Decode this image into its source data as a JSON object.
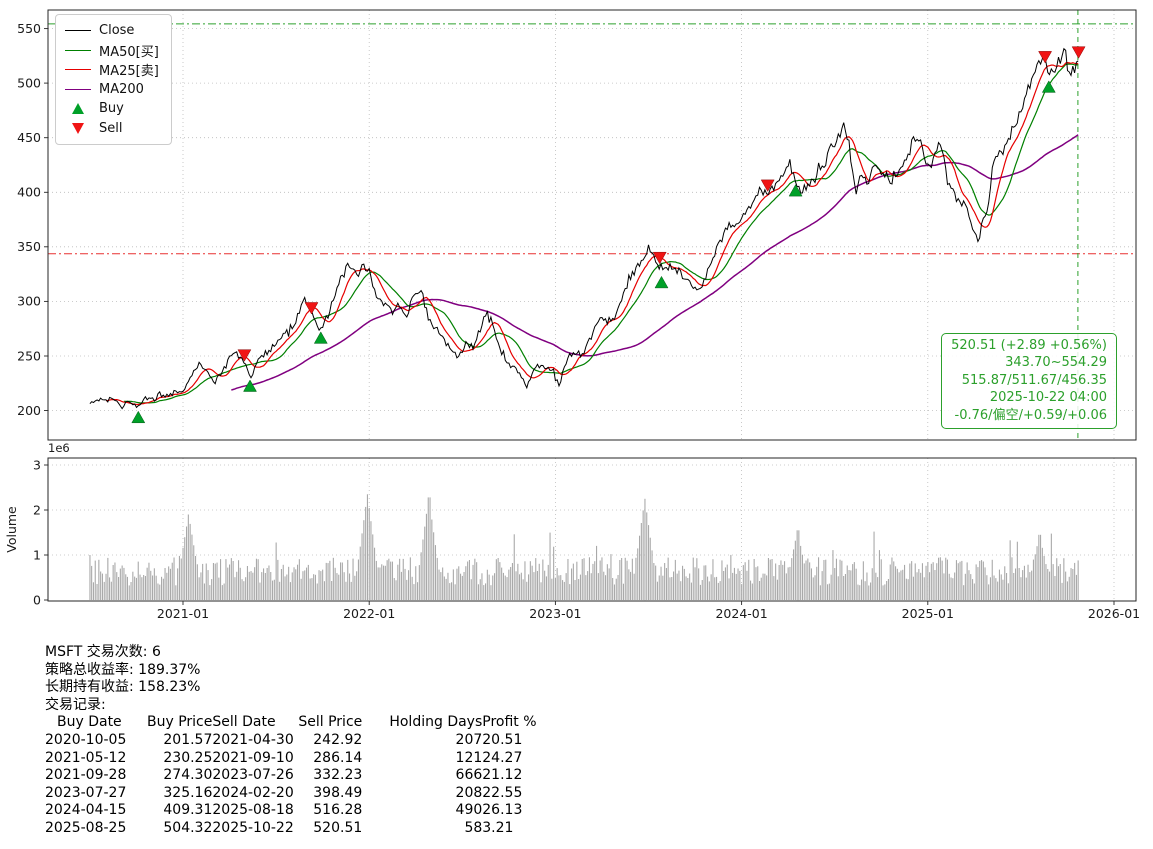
{
  "chart_data": {
    "type": "line",
    "symbol": "MSFT",
    "grid": true,
    "legend_position": "upper-left",
    "x_ticks": [
      {
        "t": 2021.0,
        "label": "2021-01"
      },
      {
        "t": 2022.0,
        "label": "2022-01"
      },
      {
        "t": 2023.0,
        "label": "2023-01"
      },
      {
        "t": 2024.0,
        "label": "2024-01"
      },
      {
        "t": 2025.0,
        "label": "2025-01"
      },
      {
        "t": 2026.0,
        "label": "2026-01"
      }
    ],
    "y_ticks": [
      200,
      250,
      300,
      350,
      400,
      450,
      500,
      550
    ],
    "ylim": [
      173,
      567
    ],
    "xlim": [
      2020.275,
      2026.118
    ],
    "colors": {
      "close": "#000000",
      "ma50": "#008000",
      "ma25": "#e60000",
      "ma200": "#800080",
      "buy": "#00a028",
      "sell": "#f01414",
      "ref_high": "#2ca02c",
      "ref_low": "#e83030",
      "vline": "#2ca02c",
      "volume_bar": "#a9a9a9",
      "annotation": "#2ca02c"
    },
    "legend": [
      {
        "label": "Close",
        "type": "line",
        "color": "#000000"
      },
      {
        "label": "MA50[买]",
        "type": "line",
        "color": "#008000"
      },
      {
        "label": "MA25[卖]",
        "type": "line",
        "color": "#e60000"
      },
      {
        "label": "MA200",
        "type": "line",
        "color": "#800080"
      },
      {
        "label": "Buy",
        "type": "triangle-up",
        "color": "#00a028"
      },
      {
        "label": "Sell",
        "type": "triangle-down",
        "color": "#f01414"
      }
    ],
    "ma_windows": {
      "ma25": 10,
      "ma50": 20,
      "ma200": 80
    },
    "series_close_control_points": [
      [
        2020.5,
        205
      ],
      [
        2020.54,
        212
      ],
      [
        2020.58,
        207
      ],
      [
        2020.62,
        214
      ],
      [
        2020.66,
        203
      ],
      [
        2020.7,
        207
      ],
      [
        2020.76,
        202
      ],
      [
        2020.8,
        212
      ],
      [
        2020.84,
        210
      ],
      [
        2020.88,
        215
      ],
      [
        2020.92,
        213
      ],
      [
        2020.96,
        218
      ],
      [
        2021.0,
        217
      ],
      [
        2021.04,
        232
      ],
      [
        2021.09,
        243
      ],
      [
        2021.13,
        234
      ],
      [
        2021.17,
        226
      ],
      [
        2021.21,
        236
      ],
      [
        2021.25,
        247
      ],
      [
        2021.29,
        252
      ],
      [
        2021.33,
        243
      ],
      [
        2021.36,
        231
      ],
      [
        2021.4,
        245
      ],
      [
        2021.44,
        252
      ],
      [
        2021.48,
        258
      ],
      [
        2021.52,
        266
      ],
      [
        2021.56,
        272
      ],
      [
        2021.6,
        280
      ],
      [
        2021.64,
        296
      ],
      [
        2021.67,
        301
      ],
      [
        2021.69,
        289
      ],
      [
        2021.72,
        278
      ],
      [
        2021.74,
        275
      ],
      [
        2021.78,
        288
      ],
      [
        2021.82,
        309
      ],
      [
        2021.86,
        325
      ],
      [
        2021.9,
        335
      ],
      [
        2021.93,
        323
      ],
      [
        2021.96,
        330
      ],
      [
        2022.0,
        330
      ],
      [
        2022.03,
        310
      ],
      [
        2022.06,
        300
      ],
      [
        2022.09,
        295
      ],
      [
        2022.12,
        290
      ],
      [
        2022.16,
        298
      ],
      [
        2022.2,
        287
      ],
      [
        2022.24,
        304
      ],
      [
        2022.28,
        310
      ],
      [
        2022.32,
        282
      ],
      [
        2022.36,
        274
      ],
      [
        2022.4,
        266
      ],
      [
        2022.44,
        255
      ],
      [
        2022.48,
        250
      ],
      [
        2022.52,
        262
      ],
      [
        2022.56,
        258
      ],
      [
        2022.6,
        276
      ],
      [
        2022.63,
        290
      ],
      [
        2022.66,
        280
      ],
      [
        2022.7,
        256
      ],
      [
        2022.74,
        242
      ],
      [
        2022.78,
        238
      ],
      [
        2022.82,
        232
      ],
      [
        2022.84,
        220
      ],
      [
        2022.87,
        232
      ],
      [
        2022.9,
        242
      ],
      [
        2022.94,
        240
      ],
      [
        2022.98,
        236
      ],
      [
        2023.02,
        224
      ],
      [
        2023.06,
        246
      ],
      [
        2023.1,
        255
      ],
      [
        2023.14,
        250
      ],
      [
        2023.18,
        262
      ],
      [
        2023.22,
        278
      ],
      [
        2023.26,
        286
      ],
      [
        2023.3,
        282
      ],
      [
        2023.34,
        292
      ],
      [
        2023.38,
        312
      ],
      [
        2023.42,
        326
      ],
      [
        2023.45,
        332
      ],
      [
        2023.48,
        340
      ],
      [
        2023.51,
        346
      ],
      [
        2023.54,
        338
      ],
      [
        2023.56,
        332
      ],
      [
        2023.58,
        326
      ],
      [
        2023.62,
        334
      ],
      [
        2023.66,
        328
      ],
      [
        2023.7,
        318
      ],
      [
        2023.74,
        313
      ],
      [
        2023.78,
        312
      ],
      [
        2023.82,
        330
      ],
      [
        2023.86,
        346
      ],
      [
        2023.9,
        362
      ],
      [
        2023.94,
        370
      ],
      [
        2023.98,
        372
      ],
      [
        2024.02,
        380
      ],
      [
        2024.06,
        392
      ],
      [
        2024.1,
        404
      ],
      [
        2024.14,
        399
      ],
      [
        2024.18,
        404
      ],
      [
        2024.22,
        414
      ],
      [
        2024.26,
        425
      ],
      [
        2024.29,
        410
      ],
      [
        2024.32,
        400
      ],
      [
        2024.36,
        408
      ],
      [
        2024.4,
        414
      ],
      [
        2024.44,
        424
      ],
      [
        2024.48,
        442
      ],
      [
        2024.52,
        450
      ],
      [
        2024.55,
        460
      ],
      [
        2024.58,
        442
      ],
      [
        2024.61,
        400
      ],
      [
        2024.64,
        416
      ],
      [
        2024.68,
        410
      ],
      [
        2024.72,
        428
      ],
      [
        2024.76,
        418
      ],
      [
        2024.8,
        410
      ],
      [
        2024.84,
        420
      ],
      [
        2024.88,
        426
      ],
      [
        2024.92,
        446
      ],
      [
        2024.95,
        450
      ],
      [
        2024.98,
        432
      ],
      [
        2025.01,
        424
      ],
      [
        2025.04,
        436
      ],
      [
        2025.07,
        446
      ],
      [
        2025.1,
        414
      ],
      [
        2025.13,
        400
      ],
      [
        2025.16,
        395
      ],
      [
        2025.19,
        390
      ],
      [
        2025.22,
        382
      ],
      [
        2025.25,
        362
      ],
      [
        2025.27,
        357
      ],
      [
        2025.3,
        375
      ],
      [
        2025.33,
        392
      ],
      [
        2025.35,
        424
      ],
      [
        2025.38,
        432
      ],
      [
        2025.41,
        440
      ],
      [
        2025.44,
        452
      ],
      [
        2025.47,
        463
      ],
      [
        2025.5,
        474
      ],
      [
        2025.53,
        492
      ],
      [
        2025.56,
        506
      ],
      [
        2025.59,
        513
      ],
      [
        2025.62,
        528
      ],
      [
        2025.64,
        515
      ],
      [
        2025.66,
        505
      ],
      [
        2025.68,
        513
      ],
      [
        2025.71,
        523
      ],
      [
        2025.73,
        534
      ],
      [
        2025.75,
        515
      ],
      [
        2025.77,
        509
      ],
      [
        2025.79,
        516
      ],
      [
        2025.81,
        520.51
      ]
    ],
    "markers": {
      "buy": [
        {
          "date": "2020-10-05",
          "t": 2020.76,
          "price": 201.57
        },
        {
          "date": "2021-05-12",
          "t": 2021.36,
          "price": 230.25
        },
        {
          "date": "2021-09-28",
          "t": 2021.74,
          "price": 274.3
        },
        {
          "date": "2023-07-27",
          "t": 2023.57,
          "price": 325.16
        },
        {
          "date": "2024-04-15",
          "t": 2024.29,
          "price": 409.31
        },
        {
          "date": "2025-08-25",
          "t": 2025.65,
          "price": 504.32
        }
      ],
      "sell": [
        {
          "date": "2021-04-30",
          "t": 2021.33,
          "price": 242.92
        },
        {
          "date": "2021-09-10",
          "t": 2021.69,
          "price": 286.14
        },
        {
          "date": "2023-07-26",
          "t": 2023.56,
          "price": 332.23
        },
        {
          "date": "2024-02-20",
          "t": 2024.14,
          "price": 398.49
        },
        {
          "date": "2025-08-18",
          "t": 2025.63,
          "price": 516.28
        },
        {
          "date": "2025-10-22",
          "t": 2025.81,
          "price": 520.51
        }
      ]
    },
    "reference_lines": {
      "high": 554.29,
      "low": 343.7,
      "last_t": 2025.806
    },
    "annotation": {
      "lines": [
        "520.51 (+2.89 +0.56%)",
        "343.70~554.29",
        "515.87/511.67/456.35",
        "2025-10-22 04:00",
        "-0.76/偏空/+0.59/+0.06"
      ],
      "color": "#2ca02c"
    },
    "volume": {
      "ylabel": "Volume",
      "multiplier": "1e6",
      "y_ticks": [
        0,
        1,
        2,
        3
      ],
      "ylim": [
        0,
        3.2
      ],
      "base": [
        0.32,
        0.95
      ],
      "spikes": [
        {
          "t": 2021.03,
          "v": 1.9
        },
        {
          "t": 2021.99,
          "v": 2.35
        },
        {
          "t": 2022.32,
          "v": 2.28
        },
        {
          "t": 2023.48,
          "v": 2.25
        },
        {
          "t": 2024.3,
          "v": 1.55
        },
        {
          "t": 2025.6,
          "v": 1.45
        }
      ]
    }
  },
  "summary": {
    "line1": "MSFT 交易次数: 6",
    "line2": "策略总收益率: 189.37%",
    "line3": "长期持有收益: 158.23%",
    "line4": "交易记录:"
  },
  "trades": {
    "headers": [
      "Buy Date",
      "Buy Price",
      "Sell Date",
      "Sell Price",
      "Holding Days",
      "Profit %"
    ],
    "rows": [
      [
        "2020-10-05",
        "201.57",
        "2021-04-30",
        "242.92",
        "207",
        "20.51"
      ],
      [
        "2021-05-12",
        "230.25",
        "2021-09-10",
        "286.14",
        "121",
        "24.27"
      ],
      [
        "2021-09-28",
        "274.30",
        "2023-07-26",
        "332.23",
        "666",
        "21.12"
      ],
      [
        "2023-07-27",
        "325.16",
        "2024-02-20",
        "398.49",
        "208",
        "22.55"
      ],
      [
        "2024-04-15",
        "409.31",
        "2025-08-18",
        "516.28",
        "490",
        "26.13"
      ],
      [
        "2025-08-25",
        "504.32",
        "2025-10-22",
        "520.51",
        "58",
        "3.21"
      ]
    ]
  }
}
